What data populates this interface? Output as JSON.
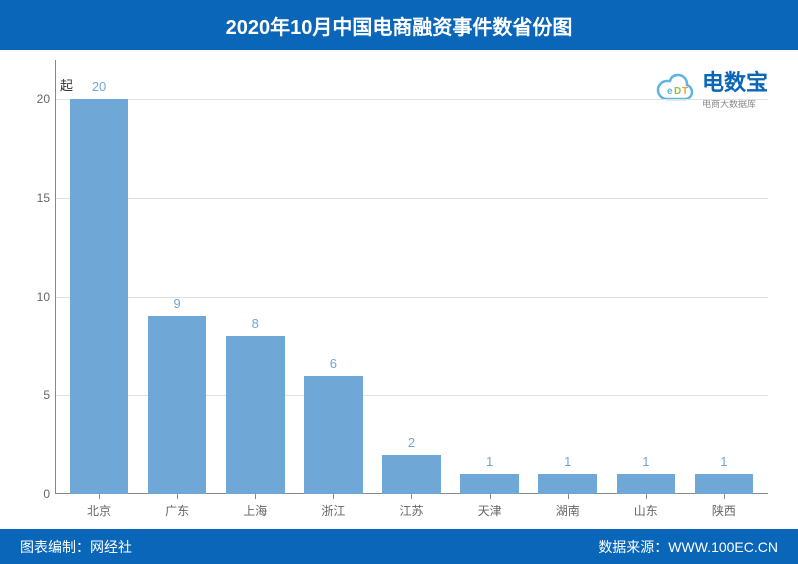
{
  "chart": {
    "type": "bar",
    "title": "2020年10月中国电商融资事件数省份图",
    "y_axis_unit": "起",
    "categories": [
      "北京",
      "广东",
      "上海",
      "浙江",
      "江苏",
      "天津",
      "湖南",
      "山东",
      "陕西"
    ],
    "values": [
      20,
      9,
      8,
      6,
      2,
      1,
      1,
      1,
      1
    ],
    "bar_color": "#6fa8d6",
    "value_label_color": "#6fa8d6",
    "value_label_fontsize": 13,
    "y_ticks": [
      0,
      5,
      10,
      15,
      20
    ],
    "ylim": [
      0,
      22
    ],
    "tick_label_fontsize": 12,
    "tick_label_color": "#666666",
    "grid_color": "#e0e0e0",
    "axis_color": "#888888",
    "background_color": "#ffffff",
    "bar_width_ratio": 0.75,
    "title_bg_color": "#0966b8",
    "title_color": "#ffffff",
    "title_fontsize": 20,
    "title_fontweight": "bold"
  },
  "logo": {
    "main_text": "电数宝",
    "sub_text": "电商大数据库",
    "main_color": "#0966b8",
    "sub_color": "#888888",
    "icon_color": "#5fb4e0",
    "icon_accent": "#8cc152"
  },
  "footer": {
    "left_text": "图表编制：网经社",
    "right_text": "数据来源：WWW.100EC.CN",
    "bg_color": "#0966b8",
    "text_color": "#ffffff",
    "fontsize": 14
  }
}
